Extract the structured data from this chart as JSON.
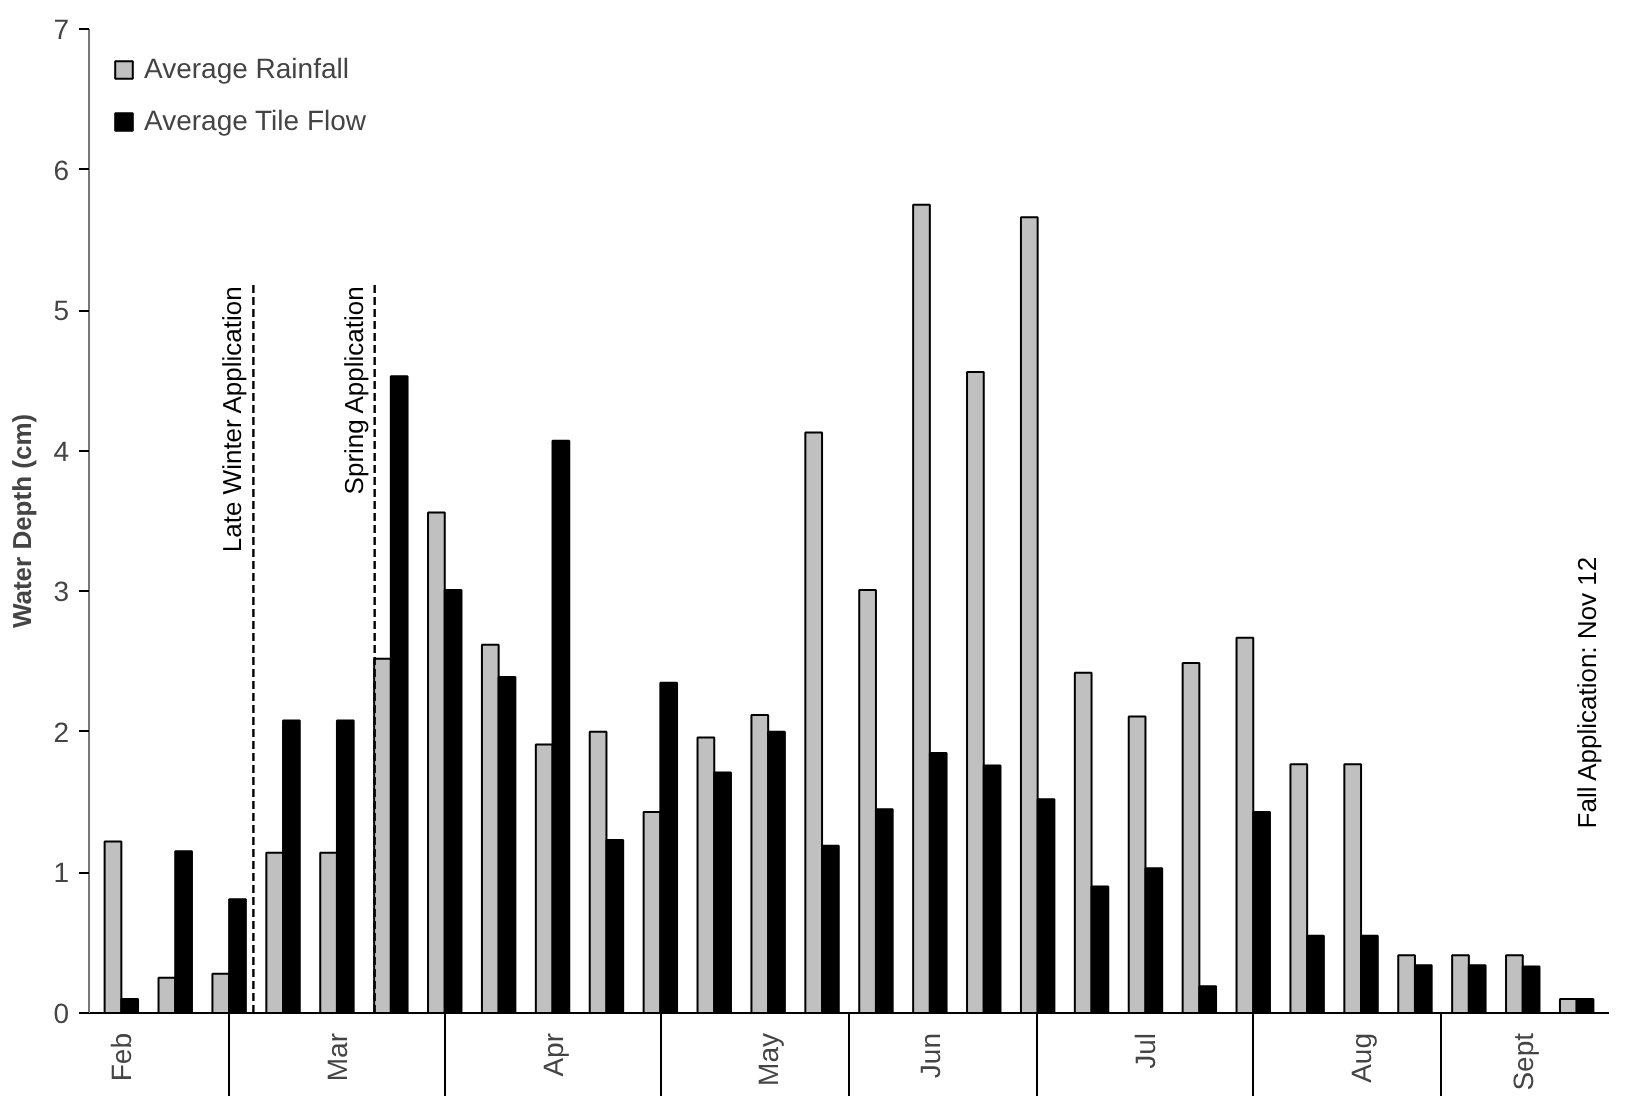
{
  "chart_data": {
    "type": "bar",
    "ylabel": "Water Depth (cm)",
    "categories": [
      "Feb",
      null,
      null,
      null,
      "Mar",
      null,
      null,
      null,
      "Apr",
      null,
      null,
      null,
      "May",
      null,
      null,
      "Jun",
      null,
      null,
      null,
      "Jul",
      null,
      null,
      null,
      "Aug",
      null,
      null,
      "Sept",
      null
    ],
    "series": [
      {
        "name": "Average Rainfall",
        "color": "#c0c0c0",
        "values": [
          1.22,
          0.25,
          0.28,
          1.14,
          1.14,
          2.52,
          3.56,
          2.62,
          1.91,
          2.0,
          1.43,
          1.96,
          2.12,
          4.13,
          3.01,
          5.75,
          4.56,
          5.66,
          2.42,
          2.11,
          2.49,
          2.67,
          1.77,
          1.77,
          0.41,
          0.41,
          0.41,
          0.1
        ]
      },
      {
        "name": "Average Tile Flow",
        "color": "#000000",
        "values": [
          0.1,
          1.15,
          0.81,
          2.08,
          2.08,
          4.53,
          3.01,
          2.39,
          4.07,
          1.23,
          2.35,
          1.71,
          2.0,
          1.19,
          1.45,
          1.85,
          1.76,
          1.52,
          0.9,
          1.03,
          0.19,
          1.43,
          0.55,
          0.55,
          0.34,
          0.34,
          0.33,
          0.1
        ]
      }
    ],
    "ylim": [
      0,
      7
    ],
    "yticks": [
      0,
      1,
      2,
      3,
      4,
      5,
      6,
      7
    ],
    "grid": false,
    "legend": "top left",
    "annotations": [
      "Late Winter Application",
      "Spring Application",
      "Fall Application:  Nov 12"
    ]
  }
}
